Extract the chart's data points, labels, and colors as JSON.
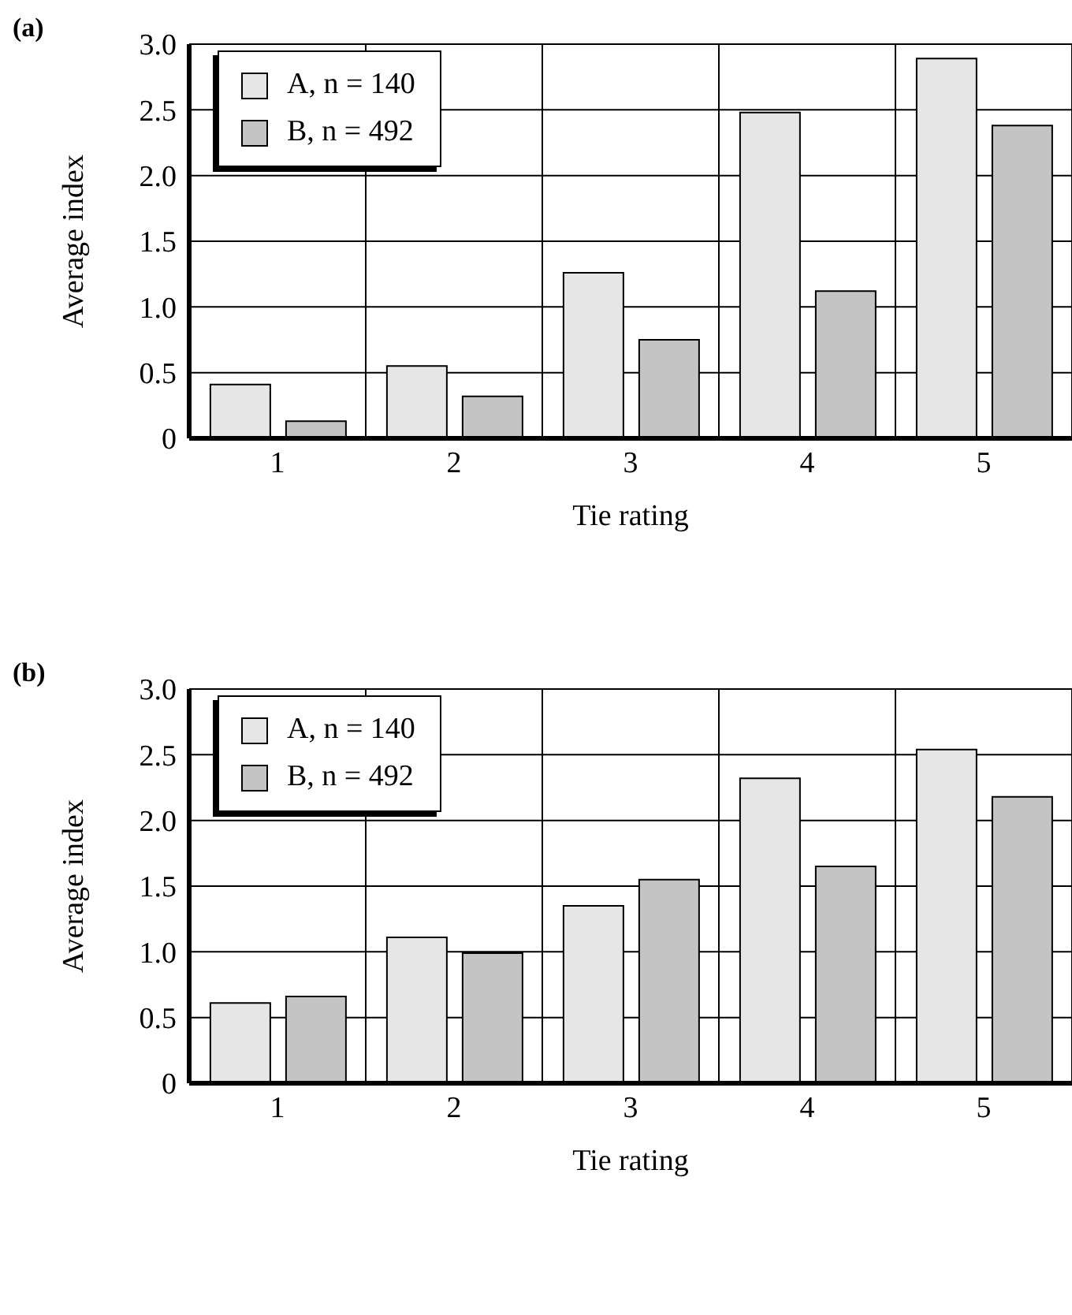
{
  "chart_data": [
    {
      "type": "bar",
      "title": "(a)",
      "xlabel": "Tie rating",
      "ylabel": "Average index",
      "categories": [
        "1",
        "2",
        "3",
        "4",
        "5"
      ],
      "series": [
        {
          "name": "A, n = 140",
          "color": "#e6e6e6",
          "values": [
            0.41,
            0.55,
            1.26,
            2.48,
            2.89
          ]
        },
        {
          "name": "B, n = 492",
          "color": "#c4c4c4",
          "values": [
            0.13,
            0.32,
            0.75,
            1.12,
            2.38
          ]
        }
      ],
      "ylim": [
        0,
        3
      ],
      "yticks": [
        0,
        0.5,
        {
          "value": 1,
          "label": "1.0"
        },
        1.5,
        {
          "value": 2,
          "label": "2.0"
        },
        2.5,
        {
          "value": 3,
          "label": "3.0"
        }
      ],
      "grid": true,
      "legend": "top left"
    },
    {
      "type": "bar",
      "title": "(b)",
      "xlabel": "Tie rating",
      "ylabel": "Average index",
      "categories": [
        "1",
        "2",
        "3",
        "4",
        "5"
      ],
      "series": [
        {
          "name": "A, n = 140",
          "color": "#e6e6e6",
          "values": [
            0.61,
            1.11,
            1.35,
            2.32,
            2.54
          ]
        },
        {
          "name": "B, n = 492",
          "color": "#c4c4c4",
          "values": [
            0.66,
            0.99,
            1.55,
            1.65,
            2.18
          ]
        }
      ],
      "ylim": [
        0,
        3
      ],
      "yticks": [
        0,
        0.5,
        {
          "value": 1,
          "label": "1.0"
        },
        1.5,
        {
          "value": 2,
          "label": "2.0"
        },
        2.5,
        {
          "value": 3,
          "label": "3.0"
        }
      ],
      "grid": true,
      "legend": "top left"
    }
  ]
}
